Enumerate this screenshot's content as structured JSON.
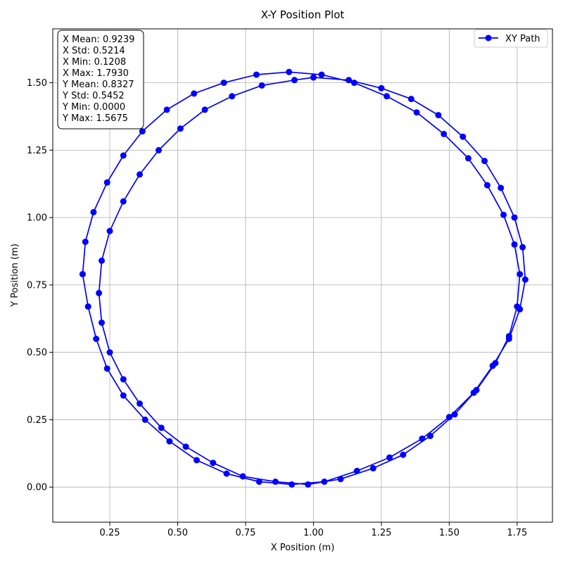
{
  "chart_data": {
    "type": "line",
    "title": "X-Y Position Plot",
    "xlabel": "X Position (m)",
    "ylabel": "Y Position (m)",
    "xlim": [
      0.04,
      1.88
    ],
    "ylim": [
      -0.13,
      1.7
    ],
    "xticks": [
      "0.25",
      "0.50",
      "0.75",
      "1.00",
      "1.25",
      "1.50",
      "1.75"
    ],
    "xtick_values": [
      0.25,
      0.5,
      0.75,
      1.0,
      1.25,
      1.5,
      1.75
    ],
    "yticks": [
      "0.00",
      "0.25",
      "0.50",
      "0.75",
      "1.00",
      "1.25",
      "1.50"
    ],
    "ytick_values": [
      0.0,
      0.25,
      0.5,
      0.75,
      1.0,
      1.25,
      1.5
    ],
    "grid": true,
    "legend_position": "top-right",
    "series": [
      {
        "name": "XY Path",
        "color": "#0000ff",
        "marker": "circle",
        "x": [
          1.0,
          1.13,
          1.25,
          1.36,
          1.46,
          1.55,
          1.63,
          1.69,
          1.74,
          1.77,
          1.78,
          1.76,
          1.72,
          1.66,
          1.59,
          1.5,
          1.4,
          1.28,
          1.16,
          1.04,
          0.92,
          0.8,
          0.68,
          0.57,
          0.47,
          0.38,
          0.3,
          0.24,
          0.2,
          0.17,
          0.15,
          0.16,
          0.19,
          0.24,
          0.3,
          0.37,
          0.46,
          0.56,
          0.67,
          0.79,
          0.91,
          1.03,
          1.15,
          1.27,
          1.38,
          1.48,
          1.57,
          1.64,
          1.7,
          1.74,
          1.76,
          1.75,
          1.72,
          1.67,
          1.6,
          1.52,
          1.43,
          1.33,
          1.22,
          1.1,
          0.98,
          0.86,
          0.74,
          0.63,
          0.53,
          0.44,
          0.36,
          0.3,
          0.25,
          0.22,
          0.21,
          0.22,
          0.25,
          0.3,
          0.36,
          0.43,
          0.51,
          0.6,
          0.7,
          0.81,
          0.93,
          1.0
        ],
        "y": [
          1.52,
          1.51,
          1.48,
          1.44,
          1.38,
          1.3,
          1.21,
          1.11,
          1.0,
          0.89,
          0.77,
          0.66,
          0.55,
          0.45,
          0.35,
          0.26,
          0.18,
          0.11,
          0.06,
          0.02,
          0.01,
          0.02,
          0.05,
          0.1,
          0.17,
          0.25,
          0.34,
          0.44,
          0.55,
          0.67,
          0.79,
          0.91,
          1.02,
          1.13,
          1.23,
          1.32,
          1.4,
          1.46,
          1.5,
          1.53,
          1.54,
          1.53,
          1.5,
          1.45,
          1.39,
          1.31,
          1.22,
          1.12,
          1.01,
          0.9,
          0.79,
          0.67,
          0.56,
          0.46,
          0.36,
          0.27,
          0.19,
          0.12,
          0.07,
          0.03,
          0.01,
          0.02,
          0.04,
          0.09,
          0.15,
          0.22,
          0.31,
          0.4,
          0.5,
          0.61,
          0.72,
          0.84,
          0.95,
          1.06,
          1.16,
          1.25,
          1.33,
          1.4,
          1.45,
          1.49,
          1.51,
          1.52
        ]
      }
    ],
    "stats_box": [
      "X Mean: 0.9239",
      "X Std: 0.5214",
      "X Min: 0.1208",
      "X Max: 1.7930",
      "Y Mean: 0.8327",
      "Y Std: 0.5452",
      "Y Min: 0.0000",
      "Y Max: 1.5675"
    ]
  }
}
